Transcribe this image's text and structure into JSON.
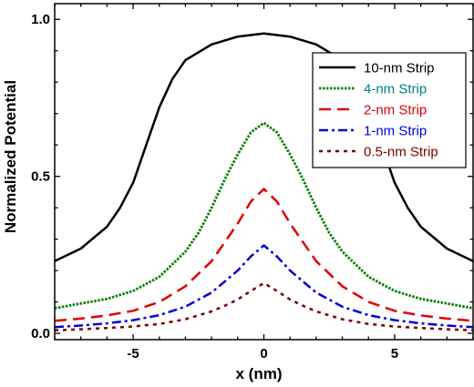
{
  "chart_data": {
    "type": "line",
    "xlabel": "x (nm)",
    "ylabel": "Normalized Potential",
    "xlim": [
      -8,
      8
    ],
    "ylim": [
      -0.02,
      1.05
    ],
    "xticks": [
      -5,
      0,
      5
    ],
    "xtick_labels": [
      "-5",
      "0",
      "5"
    ],
    "yticks": [
      0.0,
      0.5,
      1.0
    ],
    "ytick_labels": [
      "0.0",
      "0.5",
      "1.0"
    ],
    "grid": false,
    "legend_position": "top-right",
    "series": [
      {
        "name": "10-nm Strip",
        "color": "#000000",
        "label_color": "#000000",
        "dash": "solid",
        "x": [
          -8,
          -7,
          -6,
          -5.5,
          -5,
          -4.5,
          -4,
          -3.5,
          -3,
          -2,
          -1,
          0,
          1,
          2,
          3,
          3.5,
          4,
          4.5,
          5,
          5.5,
          6,
          7,
          8
        ],
        "y": [
          0.23,
          0.27,
          0.34,
          0.4,
          0.48,
          0.6,
          0.72,
          0.81,
          0.87,
          0.92,
          0.945,
          0.955,
          0.945,
          0.92,
          0.87,
          0.81,
          0.72,
          0.6,
          0.48,
          0.4,
          0.34,
          0.27,
          0.23
        ]
      },
      {
        "name": "4-nm Strip",
        "color": "#008000",
        "label_color": "#008080",
        "dash": "dotted",
        "x": [
          -8,
          -7,
          -6,
          -5,
          -4,
          -3,
          -2.5,
          -2,
          -1.5,
          -1,
          -0.5,
          0,
          0.5,
          1,
          1.5,
          2,
          2.5,
          3,
          4,
          5,
          6,
          7,
          8
        ],
        "y": [
          0.08,
          0.095,
          0.11,
          0.135,
          0.18,
          0.26,
          0.32,
          0.4,
          0.49,
          0.57,
          0.64,
          0.67,
          0.64,
          0.57,
          0.49,
          0.4,
          0.32,
          0.26,
          0.18,
          0.135,
          0.11,
          0.095,
          0.08
        ]
      },
      {
        "name": "2-nm Strip",
        "color": "#e00000",
        "label_color": "#e00000",
        "dash": "dashed",
        "x": [
          -8,
          -7,
          -6,
          -5,
          -4,
          -3,
          -2,
          -1.5,
          -1,
          -0.5,
          0,
          0.5,
          1,
          1.5,
          2,
          3,
          4,
          5,
          6,
          7,
          8
        ],
        "y": [
          0.04,
          0.047,
          0.057,
          0.072,
          0.1,
          0.15,
          0.23,
          0.29,
          0.35,
          0.42,
          0.46,
          0.42,
          0.35,
          0.29,
          0.23,
          0.15,
          0.1,
          0.072,
          0.057,
          0.047,
          0.04
        ]
      },
      {
        "name": "1-nm Strip",
        "color": "#0000e0",
        "label_color": "#0000e0",
        "dash": "dashdot",
        "x": [
          -8,
          -7,
          -6,
          -5,
          -4,
          -3,
          -2,
          -1.5,
          -1,
          -0.5,
          0,
          0.5,
          1,
          1.5,
          2,
          3,
          4,
          5,
          6,
          7,
          8
        ],
        "y": [
          0.02,
          0.025,
          0.032,
          0.042,
          0.058,
          0.085,
          0.13,
          0.165,
          0.2,
          0.245,
          0.28,
          0.245,
          0.2,
          0.165,
          0.13,
          0.085,
          0.058,
          0.042,
          0.032,
          0.025,
          0.02
        ]
      },
      {
        "name": "0.5-nm Strip",
        "color": "#7a0000",
        "label_color": "#7a0000",
        "dash": "shortdash",
        "x": [
          -8,
          -7,
          -6,
          -5,
          -4,
          -3,
          -2,
          -1.5,
          -1,
          -0.5,
          0,
          0.5,
          1,
          1.5,
          2,
          3,
          4,
          5,
          6,
          7,
          8
        ],
        "y": [
          0.01,
          0.013,
          0.017,
          0.022,
          0.03,
          0.045,
          0.07,
          0.088,
          0.108,
          0.135,
          0.16,
          0.135,
          0.108,
          0.088,
          0.07,
          0.045,
          0.03,
          0.022,
          0.017,
          0.013,
          0.01
        ]
      }
    ]
  }
}
